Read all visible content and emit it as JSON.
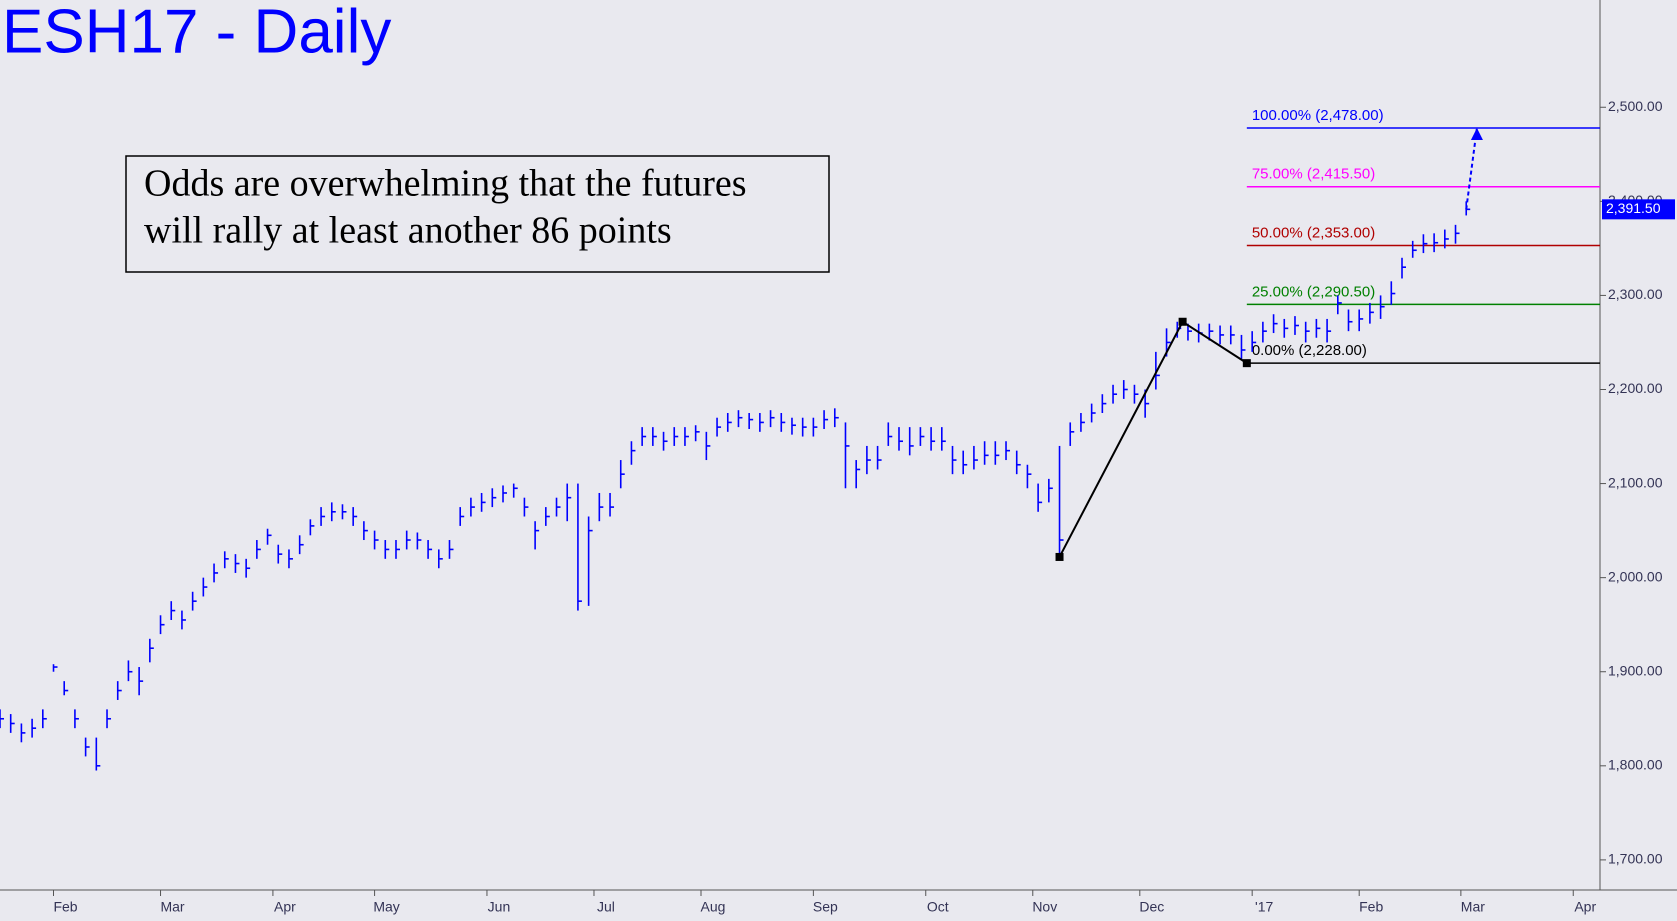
{
  "chart_data": {
    "type": "ohlc",
    "title": "ESH17 - Daily",
    "annotation": [
      "Odds are overwhelming that the futures",
      "will rally at least another 86 points"
    ],
    "color": "#0000ff",
    "xlim": [
      0,
      299
    ],
    "xticks": [
      {
        "value": 10,
        "label": "Feb"
      },
      {
        "value": 30,
        "label": "Mar"
      },
      {
        "value": 51,
        "label": "Apr"
      },
      {
        "value": 70,
        "label": "May"
      },
      {
        "value": 91,
        "label": "Jun"
      },
      {
        "value": 111,
        "label": "Jul"
      },
      {
        "value": 131,
        "label": "Aug"
      },
      {
        "value": 152,
        "label": "Sep"
      },
      {
        "value": 173,
        "label": "Oct"
      },
      {
        "value": 193,
        "label": "Nov"
      },
      {
        "value": 213,
        "label": "Dec"
      },
      {
        "value": 234,
        "label": "'17"
      },
      {
        "value": 254,
        "label": "Feb"
      },
      {
        "value": 273,
        "label": "Mar"
      },
      {
        "value": 294,
        "label": "Apr"
      }
    ],
    "ylim": [
      1668,
      2614
    ],
    "yticks": [
      {
        "value": 1700,
        "label": "1,700.00"
      },
      {
        "value": 1800,
        "label": "1,800.00"
      },
      {
        "value": 1900,
        "label": "1,900.00"
      },
      {
        "value": 2000,
        "label": "2,000.00"
      },
      {
        "value": 2100,
        "label": "2,100.00"
      },
      {
        "value": 2200,
        "label": "2,200.00"
      },
      {
        "value": 2300,
        "label": "2,300.00"
      },
      {
        "value": 2400,
        "label": "2,400.00"
      },
      {
        "value": 2500,
        "label": "2,500.00"
      }
    ],
    "x": [
      0,
      2,
      4,
      6,
      8,
      10,
      12,
      14,
      16,
      18,
      20,
      22,
      24,
      26,
      28,
      30,
      32,
      34,
      36,
      38,
      40,
      42,
      44,
      46,
      48,
      50,
      52,
      54,
      56,
      58,
      60,
      62,
      64,
      66,
      68,
      70,
      72,
      74,
      76,
      78,
      80,
      82,
      84,
      86,
      88,
      90,
      92,
      94,
      96,
      98,
      100,
      102,
      104,
      106,
      108,
      110,
      112,
      114,
      116,
      118,
      120,
      122,
      124,
      126,
      128,
      130,
      132,
      134,
      136,
      138,
      140,
      142,
      144,
      146,
      148,
      150,
      152,
      154,
      156,
      158,
      160,
      162,
      164,
      166,
      168,
      170,
      172,
      174,
      176,
      178,
      180,
      182,
      184,
      186,
      188,
      190,
      192,
      194,
      196,
      198,
      200,
      202,
      204,
      206,
      208,
      210,
      212,
      214,
      216,
      218,
      220,
      222,
      224,
      226,
      228,
      230,
      232,
      234,
      236,
      238,
      240,
      242,
      244,
      246,
      248,
      250,
      252,
      254,
      256,
      258,
      260,
      262,
      264,
      266,
      268,
      270,
      272,
      274
    ],
    "high": [
      1860,
      1855,
      1845,
      1850,
      1860,
      1908,
      1890,
      1860,
      1830,
      1830,
      1860,
      1890,
      1912,
      1905,
      1935,
      1960,
      1975,
      1965,
      1985,
      2000,
      2015,
      2028,
      2025,
      2020,
      2040,
      2052,
      2035,
      2030,
      2045,
      2062,
      2075,
      2080,
      2078,
      2075,
      2060,
      2050,
      2040,
      2040,
      2050,
      2048,
      2040,
      2030,
      2040,
      2075,
      2085,
      2090,
      2095,
      2098,
      2100,
      2085,
      2060,
      2075,
      2085,
      2100,
      2100,
      2065,
      2090,
      2090,
      2125,
      2145,
      2160,
      2160,
      2155,
      2160,
      2160,
      2162,
      2155,
      2170,
      2175,
      2178,
      2175,
      2175,
      2178,
      2175,
      2170,
      2170,
      2170,
      2178,
      2180,
      2165,
      2125,
      2140,
      2140,
      2165,
      2160,
      2160,
      2160,
      2160,
      2160,
      2140,
      2135,
      2140,
      2145,
      2145,
      2145,
      2135,
      2120,
      2100,
      2105,
      2140,
      2165,
      2175,
      2185,
      2195,
      2205,
      2210,
      2205,
      2200,
      2240,
      2265,
      2272,
      2270,
      2270,
      2270,
      2268,
      2268,
      2258,
      2262,
      2272,
      2280,
      2275,
      2278,
      2272,
      2275,
      2275,
      2300,
      2285,
      2285,
      2292,
      2300,
      2315,
      2340,
      2358,
      2365,
      2366,
      2370,
      2375,
      2400
    ],
    "low": [
      1840,
      1835,
      1825,
      1830,
      1840,
      1900,
      1875,
      1840,
      1810,
      1795,
      1840,
      1870,
      1890,
      1875,
      1910,
      1940,
      1955,
      1945,
      1965,
      1980,
      1995,
      2010,
      2005,
      2000,
      2020,
      2035,
      2015,
      2010,
      2025,
      2045,
      2055,
      2060,
      2062,
      2055,
      2040,
      2030,
      2020,
      2020,
      2030,
      2030,
      2020,
      2010,
      2020,
      2055,
      2065,
      2070,
      2075,
      2080,
      2085,
      2065,
      2030,
      2055,
      2065,
      2060,
      1965,
      1970,
      2060,
      2065,
      2095,
      2120,
      2140,
      2140,
      2135,
      2140,
      2140,
      2145,
      2125,
      2150,
      2155,
      2160,
      2158,
      2155,
      2160,
      2155,
      2152,
      2150,
      2150,
      2158,
      2160,
      2095,
      2095,
      2110,
      2115,
      2140,
      2135,
      2130,
      2140,
      2135,
      2135,
      2110,
      2110,
      2115,
      2120,
      2120,
      2125,
      2110,
      2095,
      2070,
      2080,
      2022,
      2140,
      2155,
      2165,
      2175,
      2185,
      2190,
      2185,
      2170,
      2200,
      2235,
      2255,
      2252,
      2250,
      2252,
      2248,
      2248,
      2232,
      2240,
      2250,
      2260,
      2255,
      2258,
      2250,
      2255,
      2250,
      2280,
      2262,
      2262,
      2270,
      2275,
      2290,
      2318,
      2340,
      2345,
      2346,
      2350,
      2355,
      2385
    ],
    "close": [
      1850,
      1845,
      1835,
      1840,
      1850,
      1905,
      1880,
      1850,
      1820,
      1800,
      1850,
      1880,
      1900,
      1890,
      1925,
      1950,
      1965,
      1955,
      1975,
      1990,
      2005,
      2020,
      2015,
      2010,
      2030,
      2045,
      2025,
      2020,
      2035,
      2055,
      2065,
      2070,
      2070,
      2065,
      2050,
      2040,
      2030,
      2030,
      2040,
      2040,
      2030,
      2020,
      2030,
      2065,
      2075,
      2080,
      2085,
      2090,
      2095,
      2075,
      2050,
      2065,
      2075,
      2085,
      1975,
      2050,
      2075,
      2075,
      2110,
      2135,
      2150,
      2150,
      2145,
      2150,
      2150,
      2155,
      2140,
      2160,
      2165,
      2170,
      2168,
      2165,
      2170,
      2165,
      2162,
      2160,
      2160,
      2168,
      2170,
      2140,
      2115,
      2125,
      2125,
      2150,
      2145,
      2140,
      2150,
      2145,
      2145,
      2125,
      2120,
      2125,
      2130,
      2130,
      2135,
      2120,
      2110,
      2080,
      2095,
      2040,
      2155,
      2165,
      2175,
      2185,
      2195,
      2200,
      2195,
      2185,
      2215,
      2250,
      2265,
      2262,
      2260,
      2262,
      2258,
      2258,
      2242,
      2250,
      2262,
      2270,
      2265,
      2268,
      2262,
      2265,
      2262,
      2292,
      2272,
      2275,
      2282,
      2288,
      2302,
      2330,
      2348,
      2355,
      2356,
      2360,
      2366,
      2391.5
    ],
    "fib_start": 233,
    "fib_levels": [
      {
        "label": "100.00% (2,478.00)",
        "value": 2478,
        "color": "#0000ff"
      },
      {
        "label": "75.00% (2,415.50)",
        "value": 2415.5,
        "color": "#ff00ff"
      },
      {
        "label": "50.00% (2,353.00)",
        "value": 2353,
        "color": "#b00000"
      },
      {
        "label": "25.00% (2,290.50)",
        "value": 2290.5,
        "color": "#008000"
      },
      {
        "label": "0.00% (2,228.00)",
        "value": 2228,
        "color": "#000000"
      }
    ],
    "swing": {
      "x": [
        198,
        221,
        233
      ],
      "values": [
        2022,
        2272,
        2228
      ]
    },
    "projection": {
      "x": [
        274,
        276
      ],
      "values": [
        2391.5,
        2478
      ]
    },
    "last_price": {
      "value": 2391.5,
      "label": "2,391.50"
    }
  }
}
